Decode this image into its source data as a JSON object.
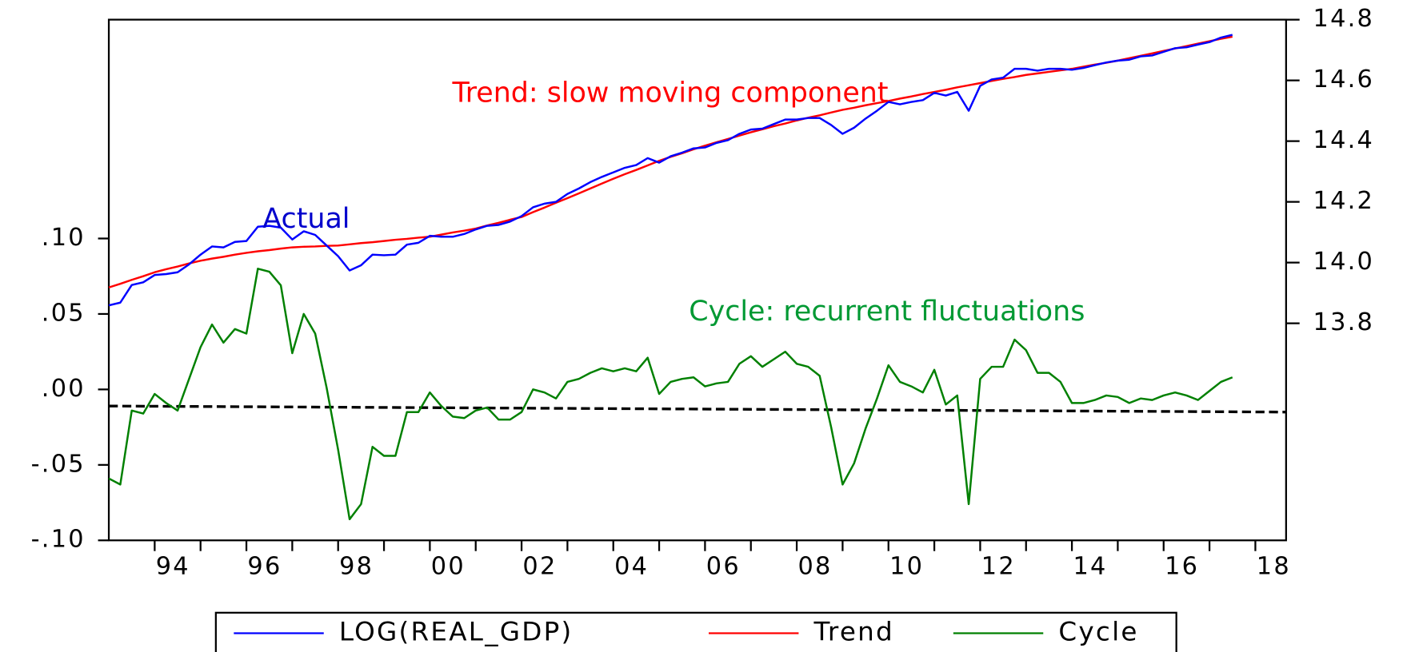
{
  "chart_data": {
    "type": "line",
    "x": [
      1993,
      1993.25,
      1993.5,
      1993.75,
      1994,
      1994.25,
      1994.5,
      1994.75,
      1995,
      1995.25,
      1995.5,
      1995.75,
      1996,
      1996.25,
      1996.5,
      1996.75,
      1997,
      1997.25,
      1997.5,
      1997.75,
      1998,
      1998.25,
      1998.5,
      1998.75,
      1999,
      1999.25,
      1999.5,
      1999.75,
      2000,
      2000.25,
      2000.5,
      2000.75,
      2001,
      2001.25,
      2001.5,
      2001.75,
      2002,
      2002.25,
      2002.5,
      2002.75,
      2003,
      2003.25,
      2003.5,
      2003.75,
      2004,
      2004.25,
      2004.5,
      2004.75,
      2005,
      2005.25,
      2005.5,
      2005.75,
      2006,
      2006.25,
      2006.5,
      2006.75,
      2007,
      2007.25,
      2007.5,
      2007.75,
      2008,
      2008.25,
      2008.5,
      2008.75,
      2009,
      2009.25,
      2009.5,
      2009.75,
      2010,
      2010.25,
      2010.5,
      2010.75,
      2011,
      2011.25,
      2011.5,
      2011.75,
      2012,
      2012.25,
      2012.5,
      2012.75,
      2013,
      2013.25,
      2013.5,
      2013.75,
      2014,
      2014.25,
      2014.5,
      2014.75,
      2015,
      2015.25,
      2015.5,
      2015.75,
      2016,
      2016.25,
      2016.5,
      2016.75,
      2017,
      2017.25,
      2017.5
    ],
    "series": [
      {
        "name": "LOG(REAL_GDP)",
        "color": "#0000ff",
        "axis": "y2",
        "values": [
          13.859,
          13.868,
          13.926,
          13.935,
          13.959,
          13.962,
          13.968,
          13.994,
          14.026,
          14.053,
          14.05,
          14.068,
          14.071,
          14.118,
          14.121,
          14.115,
          14.076,
          14.103,
          14.091,
          14.056,
          14.021,
          13.974,
          13.991,
          14.026,
          14.024,
          14.026,
          14.059,
          14.065,
          14.088,
          14.085,
          14.085,
          14.094,
          14.109,
          14.121,
          14.124,
          14.135,
          14.153,
          14.182,
          14.194,
          14.2,
          14.226,
          14.244,
          14.265,
          14.282,
          14.297,
          14.312,
          14.321,
          14.344,
          14.329,
          14.35,
          14.362,
          14.376,
          14.379,
          14.394,
          14.403,
          14.424,
          14.438,
          14.441,
          14.456,
          14.471,
          14.471,
          14.476,
          14.476,
          14.453,
          14.424,
          14.444,
          14.474,
          14.5,
          14.529,
          14.521,
          14.529,
          14.535,
          14.559,
          14.55,
          14.562,
          14.5,
          14.582,
          14.603,
          14.609,
          14.638,
          14.638,
          14.632,
          14.638,
          14.638,
          14.635,
          14.641,
          14.65,
          14.659,
          14.665,
          14.668,
          14.679,
          14.682,
          14.694,
          14.706,
          14.709,
          14.718,
          14.726,
          14.741,
          14.75
        ]
      },
      {
        "name": "Trend",
        "color": "#ff0000",
        "axis": "y2",
        "values": [
          13.918,
          13.93,
          13.943,
          13.955,
          13.968,
          13.978,
          13.987,
          13.997,
          14.006,
          14.013,
          14.019,
          14.026,
          14.032,
          14.037,
          14.041,
          14.046,
          14.05,
          14.052,
          14.053,
          14.055,
          14.056,
          14.06,
          14.064,
          14.067,
          14.071,
          14.075,
          14.078,
          14.082,
          14.085,
          14.092,
          14.099,
          14.105,
          14.112,
          14.122,
          14.131,
          14.141,
          14.15,
          14.166,
          14.181,
          14.197,
          14.212,
          14.228,
          14.244,
          14.26,
          14.276,
          14.291,
          14.305,
          14.32,
          14.335,
          14.348,
          14.36,
          14.373,
          14.385,
          14.396,
          14.407,
          14.418,
          14.429,
          14.439,
          14.449,
          14.458,
          14.468,
          14.477,
          14.485,
          14.494,
          14.503,
          14.51,
          14.518,
          14.525,
          14.532,
          14.54,
          14.547,
          14.555,
          14.562,
          14.569,
          14.577,
          14.584,
          14.591,
          14.598,
          14.605,
          14.611,
          14.618,
          14.623,
          14.628,
          14.633,
          14.638,
          14.645,
          14.652,
          14.658,
          14.665,
          14.673,
          14.681,
          14.689,
          14.697,
          14.705,
          14.713,
          14.721,
          14.729,
          14.737,
          14.744
        ]
      },
      {
        "name": "Cycle",
        "color": "#008000",
        "axis": "y",
        "values": [
          -0.059,
          -0.063,
          -0.014,
          -0.016,
          -0.003,
          -0.009,
          -0.014,
          0.007,
          0.028,
          0.043,
          0.031,
          0.04,
          0.037,
          0.08,
          0.078,
          0.069,
          0.024,
          0.05,
          0.037,
          0.001,
          -0.04,
          -0.086,
          -0.076,
          -0.038,
          -0.044,
          -0.044,
          -0.015,
          -0.015,
          -0.002,
          -0.011,
          -0.018,
          -0.019,
          -0.014,
          -0.012,
          -0.02,
          -0.02,
          -0.015,
          0,
          -0.002,
          -0.006,
          0.005,
          0.007,
          0.011,
          0.014,
          0.012,
          0.014,
          0.012,
          0.021,
          -0.003,
          0.005,
          0.007,
          0.008,
          0.002,
          0.004,
          0.005,
          0.017,
          0.022,
          0.015,
          0.02,
          0.025,
          0.017,
          0.015,
          0.009,
          -0.025,
          -0.063,
          -0.049,
          -0.026,
          -0.006,
          0.016,
          0.005,
          0.002,
          -0.002,
          0.013,
          -0.01,
          -0.004,
          -0.076,
          0.007,
          0.015,
          0.015,
          0.033,
          0.026,
          0.011,
          0.011,
          0.005,
          -0.009,
          -0.009,
          -0.007,
          -0.004,
          -0.005,
          -0.009,
          -0.006,
          -0.007,
          -0.004,
          -0.002,
          -0.004,
          -0.007,
          -0.001,
          0.005,
          0.008
        ]
      }
    ],
    "reference_line": {
      "values": [
        -0.011,
        -0.015
      ],
      "color": "#000000",
      "dashed": true
    },
    "xlim": [
      1993,
      2018.67
    ],
    "xticks": [
      {
        "value": 1994,
        "label": "94"
      },
      {
        "value": 1996,
        "label": "96"
      },
      {
        "value": 1998,
        "label": "98"
      },
      {
        "value": 2000,
        "label": "00"
      },
      {
        "value": 2002,
        "label": "02"
      },
      {
        "value": 2004,
        "label": "04"
      },
      {
        "value": 2006,
        "label": "06"
      },
      {
        "value": 2008,
        "label": "08"
      },
      {
        "value": 2010,
        "label": "10"
      },
      {
        "value": 2012,
        "label": "12"
      },
      {
        "value": 2014,
        "label": "14"
      },
      {
        "value": 2016,
        "label": "16"
      },
      {
        "value": 2018,
        "label": "18"
      }
    ],
    "ylim": [
      -0.1,
      0.245
    ],
    "yticks": [
      {
        "value": -0.1,
        "label": "-.10"
      },
      {
        "value": -0.05,
        "label": "-.05"
      },
      {
        "value": 0,
        "label": ".00"
      },
      {
        "value": 0.05,
        "label": ".05"
      },
      {
        "value": 0.1,
        "label": ".10"
      }
    ],
    "y2lim": [
      13.085,
      14.8
    ],
    "y2ticks": [
      13.8,
      {
        "value": 14.0,
        "label": "14.0"
      },
      14.2,
      14.4,
      14.6,
      14.8
    ],
    "annotations": [
      {
        "text": "Trend: slow moving component",
        "color": "#ff0000"
      },
      {
        "text": "Actual",
        "color": "#0000cc"
      },
      {
        "text": "Cycle: recurrent fluctuations",
        "color": "#009933"
      }
    ],
    "legend": "bottom"
  }
}
